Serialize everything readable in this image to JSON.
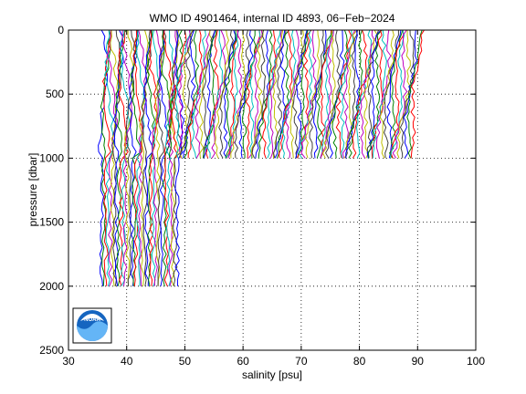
{
  "chart_data": {
    "type": "line",
    "title": "WMO ID 4901464, internal ID 4893, 06−Feb−2024",
    "xlabel": "salinity [psu]",
    "ylabel": "pressure [dbar]",
    "xlim": [
      30,
      100
    ],
    "ylim": [
      0,
      2500
    ],
    "y_reversed": true,
    "xticks": [
      "30",
      "40",
      "50",
      "60",
      "70",
      "80",
      "90",
      "100"
    ],
    "yticks": [
      "0",
      "500",
      "1000",
      "1500",
      "2000",
      "2500"
    ],
    "grid": true,
    "profiles_summary": {
      "deep_group": {
        "profile_count": 36,
        "x_start_surface": 36.0,
        "x_end_surface": 49.0,
        "max_pressure": 2000
      },
      "shallow_group": {
        "profile_count": 93,
        "x_start_surface": 49.2,
        "x_end_surface": 90.5,
        "max_pressure": 1000
      }
    },
    "line_colors": [
      "#0000ff",
      "#008000",
      "#ff0000",
      "#00bfbf",
      "#bf00bf",
      "#bfbf00",
      "#404040"
    ]
  },
  "logo": {
    "text": "NOAA"
  }
}
